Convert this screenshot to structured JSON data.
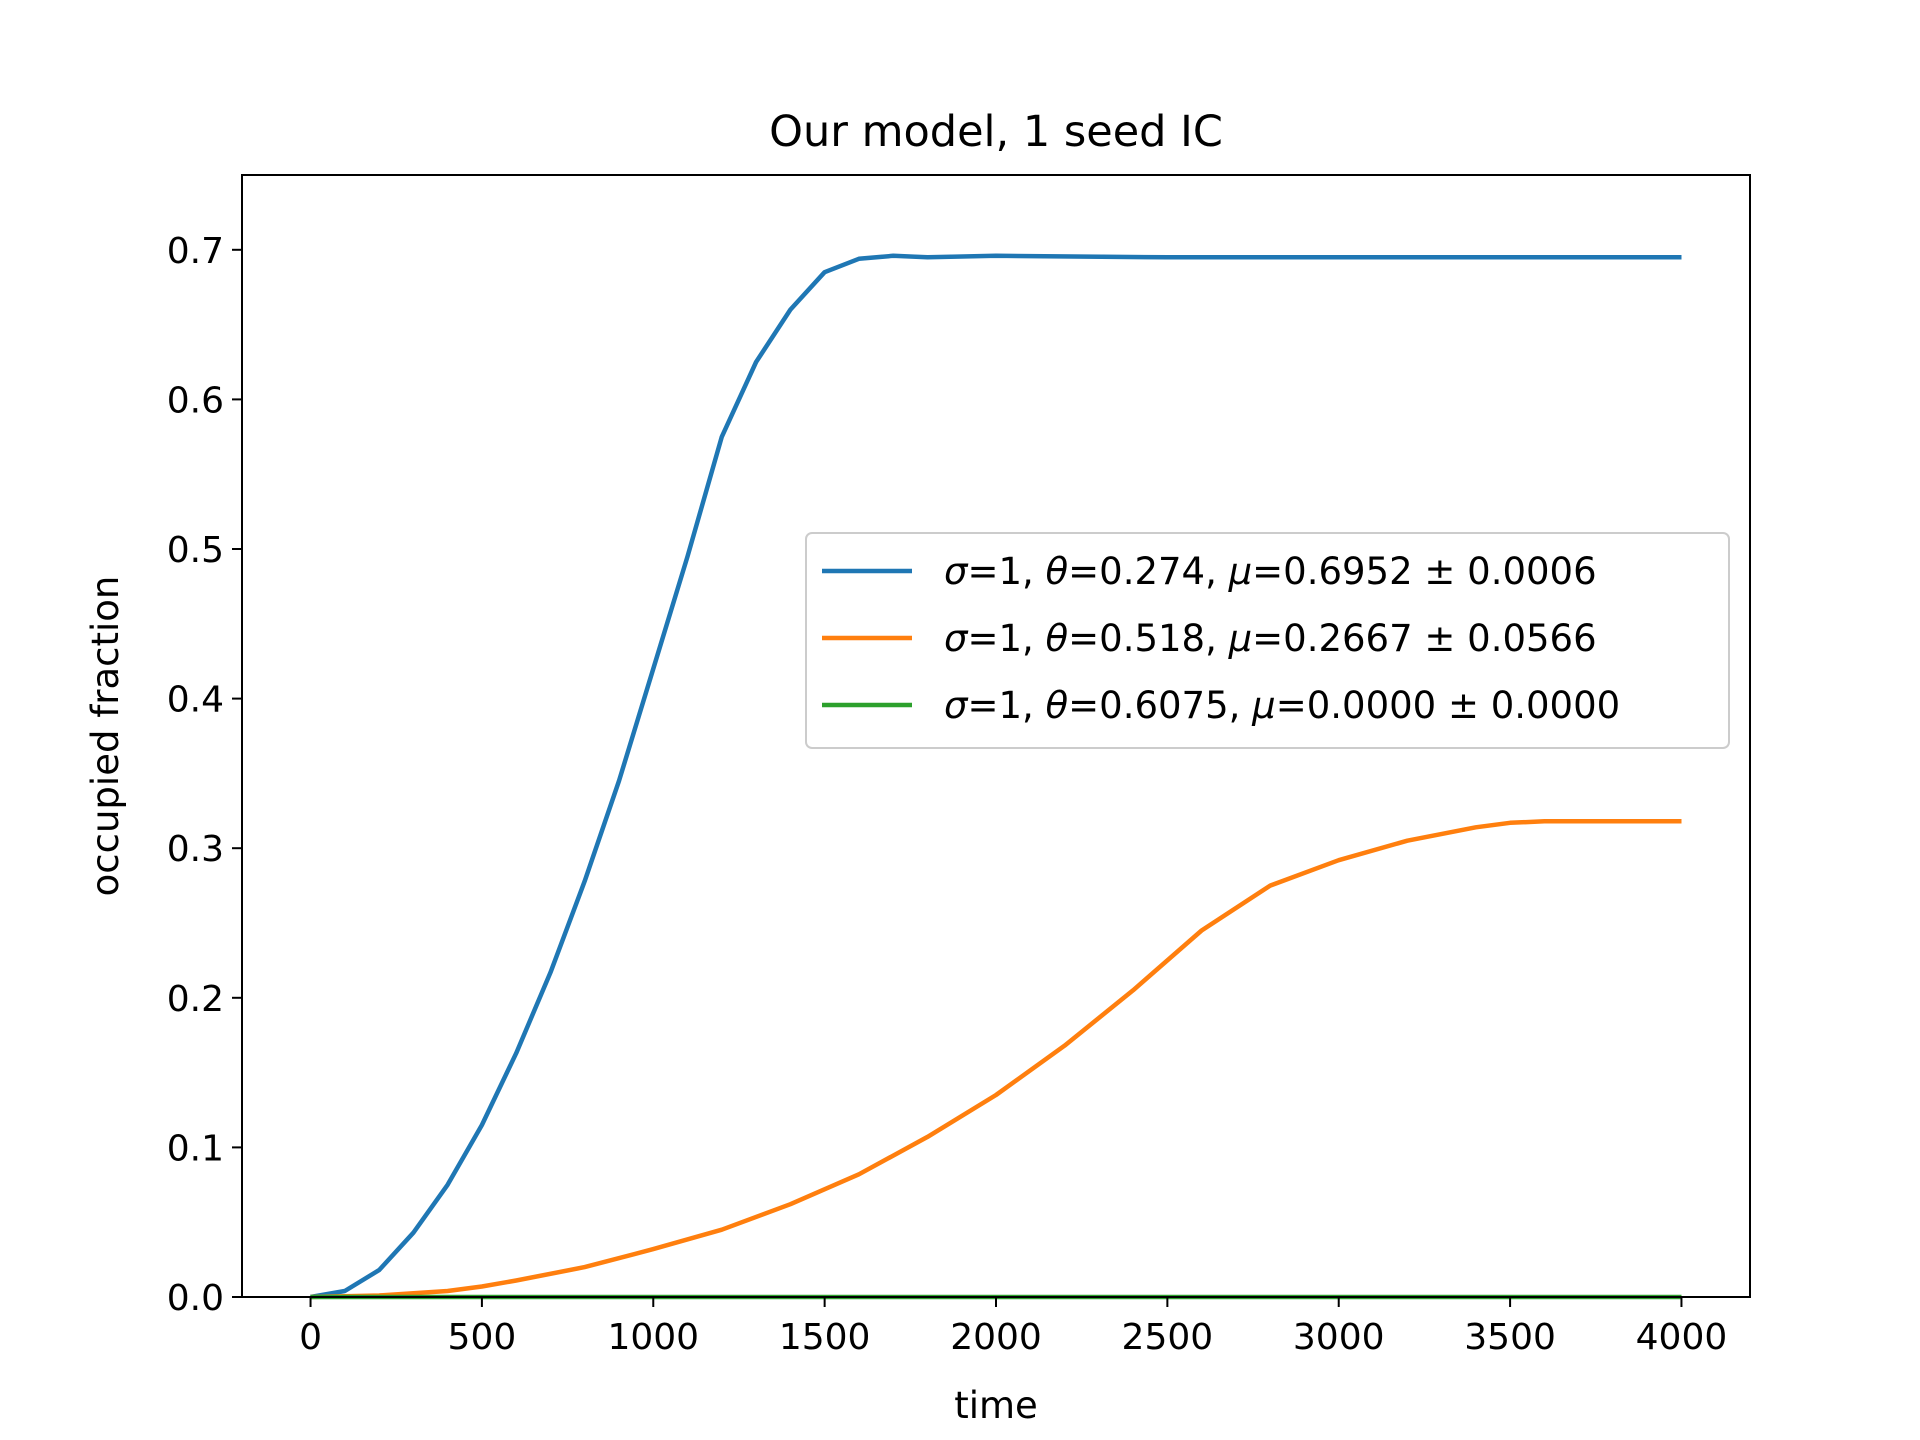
{
  "chart_data": {
    "type": "line",
    "title": "Our model, 1 seed IC",
    "xlabel": "time",
    "ylabel": "occupied fraction",
    "xlim": [
      -200,
      4200
    ],
    "ylim": [
      0,
      0.75
    ],
    "xticks": [
      0,
      500,
      1000,
      1500,
      2000,
      2500,
      3000,
      3500,
      4000
    ],
    "xtick_labels": [
      "0",
      "500",
      "1000",
      "1500",
      "2000",
      "2500",
      "3000",
      "3500",
      "4000"
    ],
    "yticks": [
      0.0,
      0.1,
      0.2,
      0.3,
      0.4,
      0.5,
      0.6,
      0.7
    ],
    "ytick_labels": [
      "0.0",
      "0.1",
      "0.2",
      "0.3",
      "0.4",
      "0.5",
      "0.6",
      "0.7"
    ],
    "grid": false,
    "legend_position": "center-right",
    "series": [
      {
        "name": "σ=1, θ=0.274, μ=0.6952 ± 0.0006",
        "legend": {
          "sigma": "1",
          "theta": "0.274",
          "mu": "0.6952",
          "err": "0.0006"
        },
        "color": "#1f77b4",
        "x": [
          0,
          100,
          200,
          300,
          400,
          500,
          600,
          700,
          800,
          900,
          1000,
          1100,
          1200,
          1300,
          1400,
          1500,
          1600,
          1700,
          1800,
          2000,
          2500,
          3000,
          3500,
          4000
        ],
        "y": [
          0.0,
          0.004,
          0.018,
          0.043,
          0.075,
          0.115,
          0.163,
          0.217,
          0.278,
          0.345,
          0.42,
          0.495,
          0.575,
          0.625,
          0.66,
          0.685,
          0.694,
          0.696,
          0.695,
          0.696,
          0.695,
          0.695,
          0.695,
          0.695
        ]
      },
      {
        "name": "σ=1, θ=0.518, μ=0.2667 ± 0.0566",
        "legend": {
          "sigma": "1",
          "theta": "0.518",
          "mu": "0.2667",
          "err": "0.0566"
        },
        "color": "#ff7f0e",
        "x": [
          0,
          200,
          400,
          500,
          600,
          800,
          1000,
          1200,
          1400,
          1600,
          1800,
          2000,
          2200,
          2400,
          2600,
          2800,
          3000,
          3200,
          3400,
          3500,
          3600,
          3800,
          4000
        ],
        "y": [
          0.0,
          0.001,
          0.004,
          0.007,
          0.011,
          0.02,
          0.032,
          0.045,
          0.062,
          0.082,
          0.107,
          0.135,
          0.168,
          0.205,
          0.245,
          0.275,
          0.292,
          0.305,
          0.314,
          0.317,
          0.318,
          0.318,
          0.318
        ]
      },
      {
        "name": "σ=1, θ=0.6075, μ=0.0000 ± 0.0000",
        "legend": {
          "sigma": "1",
          "theta": "0.6075",
          "mu": "0.0000",
          "err": "0.0000"
        },
        "color": "#2ca02c",
        "x": [
          0,
          4000
        ],
        "y": [
          0.0,
          0.0
        ]
      }
    ]
  }
}
